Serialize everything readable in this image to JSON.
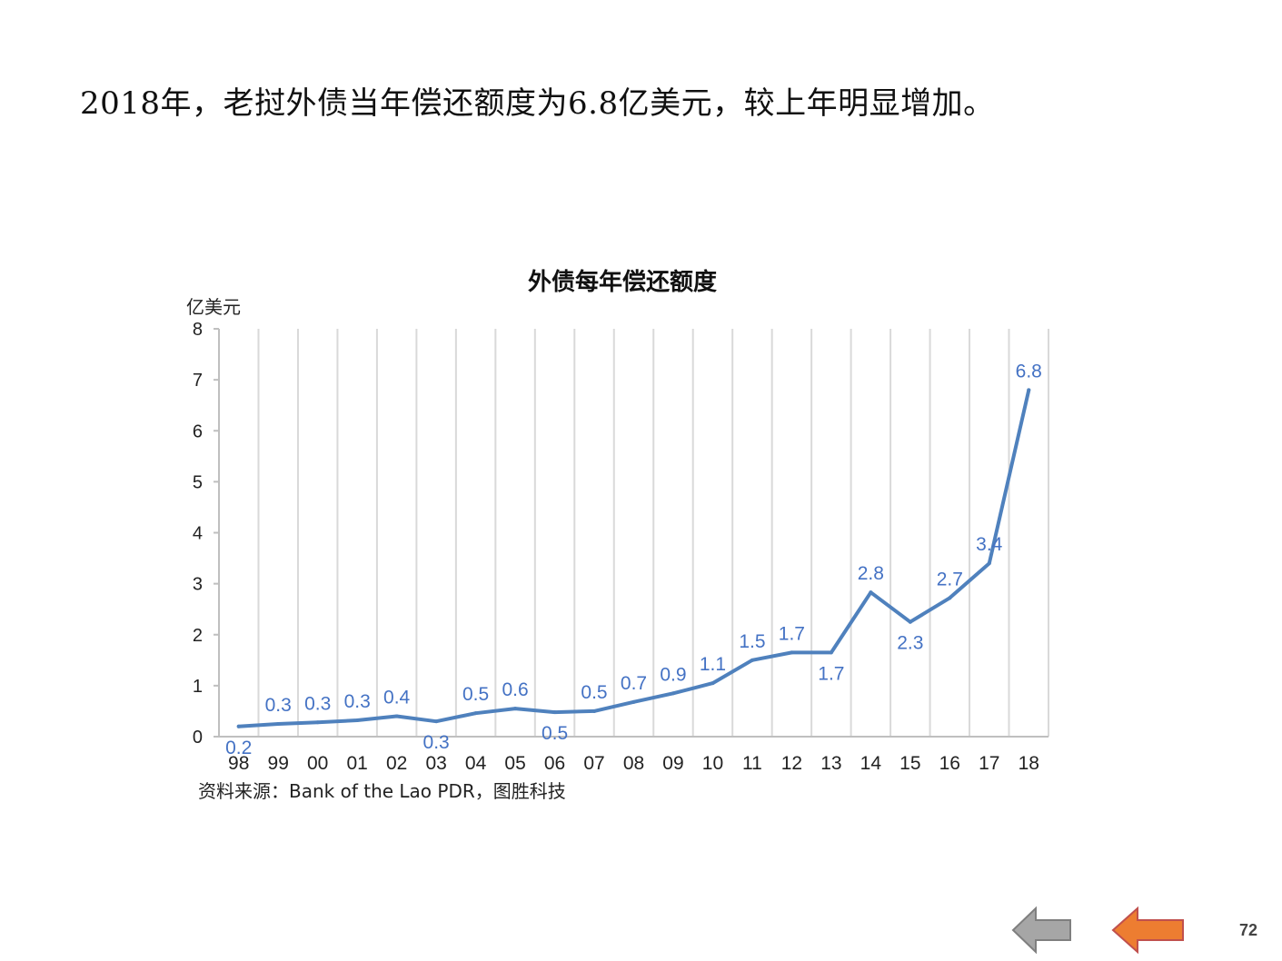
{
  "headline": "2018年，老挝外债当年偿还额度为6.8亿美元，较上年明显增加。",
  "chart_data": {
    "type": "line",
    "title": "外债每年偿还额度",
    "ylabel": "亿美元",
    "xlabel": "",
    "categories": [
      "98",
      "99",
      "00",
      "01",
      "02",
      "03",
      "04",
      "05",
      "06",
      "07",
      "08",
      "09",
      "10",
      "11",
      "12",
      "13",
      "14",
      "15",
      "16",
      "17",
      "18"
    ],
    "values": [
      0.2,
      0.25,
      0.28,
      0.32,
      0.4,
      0.3,
      0.46,
      0.55,
      0.48,
      0.5,
      0.68,
      0.85,
      1.05,
      1.5,
      1.65,
      1.65,
      2.83,
      2.25,
      2.72,
      3.4,
      6.8
    ],
    "data_labels": [
      "0.2",
      "0.3",
      "0.3",
      "0.3",
      "0.4",
      "0.3",
      "0.5",
      "0.6",
      "0.5",
      "0.5",
      "0.7",
      "0.9",
      "1.1",
      "1.5",
      "1.7",
      "1.7",
      "2.8",
      "2.3",
      "2.7",
      "3.4",
      "6.8"
    ],
    "label_placement": [
      "below",
      "above",
      "above",
      "above",
      "above",
      "below",
      "above",
      "above",
      "below",
      "above",
      "above",
      "above",
      "above",
      "above",
      "above",
      "below",
      "above",
      "below",
      "above",
      "above",
      "above"
    ],
    "ylim": [
      0,
      8
    ],
    "yticks": [
      0,
      1,
      2,
      3,
      4,
      5,
      6,
      7,
      8
    ],
    "grid": "vertical",
    "line_color": "#4F81BD",
    "label_color": "#4472C4"
  },
  "source": "资料来源：Bank of the Lao PDR，图胜科技",
  "nav": {
    "prev_icon": "arrow-left-gray-icon",
    "back_icon": "arrow-left-orange-icon",
    "prev_color": "#A6A6A6",
    "back_color": "#ED7D31"
  },
  "page_number": "72"
}
